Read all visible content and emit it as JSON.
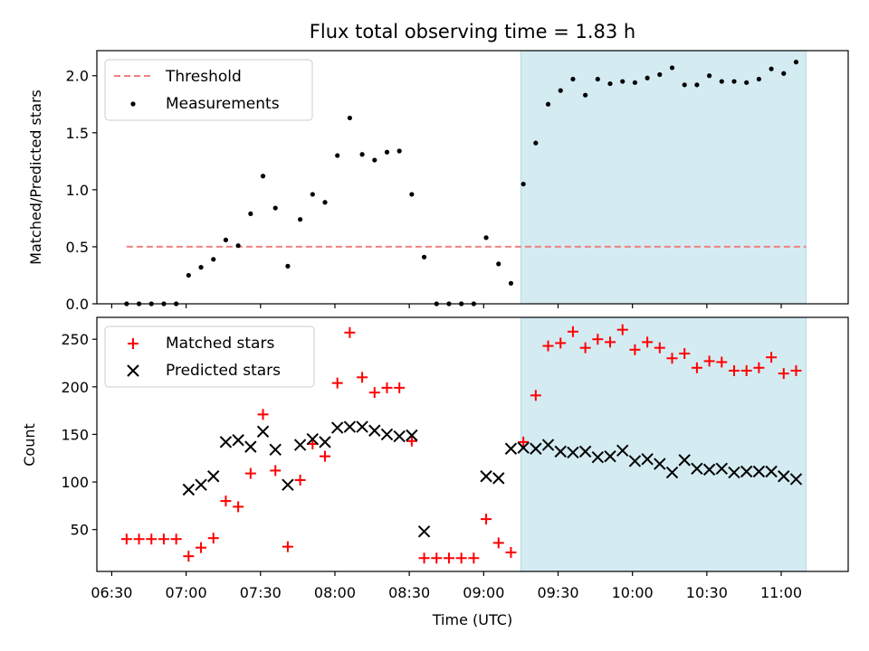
{
  "chart_data": [
    {
      "type": "scatter",
      "title": "Flux total observing time = 1.83 h",
      "xlabel": "",
      "ylabel": "Matched/Predicted stars",
      "xlim": [
        "06:24",
        "11:27"
      ],
      "ylim": [
        0,
        2.22
      ],
      "yticks": [
        "0.0",
        "0.5",
        "1.0",
        "1.5",
        "2.0"
      ],
      "ytick_values": [
        0,
        0.5,
        1.0,
        1.5,
        2.0
      ],
      "highlight_span": {
        "start": "09:15",
        "end": "11:10",
        "color": "#d4ebf2"
      },
      "legend": {
        "placement": "top-left",
        "entries": [
          "Threshold",
          "Measurements"
        ]
      },
      "series": [
        {
          "name": "Threshold",
          "kind": "line",
          "style": "dashed",
          "color": "#f08080",
          "x": [
            "06:36",
            "11:10"
          ],
          "values": [
            0.5,
            0.5
          ]
        },
        {
          "name": "Measurements",
          "kind": "scatter",
          "color": "#000000",
          "x": [
            "06:36",
            "06:41",
            "06:46",
            "06:51",
            "06:56",
            "07:01",
            "07:06",
            "07:11",
            "07:16",
            "07:21",
            "07:26",
            "07:31",
            "07:36",
            "07:41",
            "07:46",
            "07:51",
            "07:56",
            "08:01",
            "08:06",
            "08:11",
            "08:16",
            "08:21",
            "08:26",
            "08:31",
            "08:36",
            "08:41",
            "08:46",
            "08:51",
            "08:56",
            "09:01",
            "09:06",
            "09:11",
            "09:16",
            "09:21",
            "09:26",
            "09:31",
            "09:36",
            "09:41",
            "09:46",
            "09:51",
            "09:56",
            "10:01",
            "10:06",
            "10:11",
            "10:16",
            "10:21",
            "10:26",
            "10:31",
            "10:36",
            "10:41",
            "10:46",
            "10:51",
            "10:56",
            "11:01",
            "11:06"
          ],
          "values": [
            0.0,
            0.0,
            0.0,
            0.0,
            0.0,
            0.25,
            0.32,
            0.39,
            0.56,
            0.51,
            0.79,
            1.12,
            0.84,
            0.33,
            0.74,
            0.96,
            0.89,
            1.3,
            1.63,
            1.31,
            1.26,
            1.33,
            1.34,
            0.96,
            0.41,
            0.0,
            0.0,
            0.0,
            0.0,
            0.58,
            0.35,
            0.18,
            1.05,
            1.41,
            1.75,
            1.87,
            1.97,
            1.83,
            1.97,
            1.93,
            1.95,
            1.94,
            1.98,
            2.01,
            2.07,
            1.92,
            1.92,
            2.0,
            1.95,
            1.95,
            1.94,
            1.97,
            2.06,
            2.02,
            2.12
          ]
        }
      ]
    },
    {
      "type": "scatter",
      "title": "",
      "xlabel": "Time (UTC)",
      "ylabel": "Count",
      "xlim": [
        "06:24",
        "11:27"
      ],
      "ylim": [
        6,
        273
      ],
      "xticks": [
        "06:30",
        "07:00",
        "07:30",
        "08:00",
        "08:30",
        "09:00",
        "09:30",
        "10:00",
        "10:30",
        "11:00"
      ],
      "yticks": [
        "50",
        "100",
        "150",
        "200",
        "250"
      ],
      "ytick_values": [
        50,
        100,
        150,
        200,
        250
      ],
      "highlight_span": {
        "start": "09:15",
        "end": "11:10",
        "color": "#d4ebf2"
      },
      "legend": {
        "placement": "top-left",
        "entries": [
          "Matched stars",
          "Predicted stars"
        ]
      },
      "series": [
        {
          "name": "Matched stars",
          "marker": "+",
          "color": "#ff0000",
          "x": [
            "06:36",
            "06:41",
            "06:46",
            "06:51",
            "06:56",
            "07:01",
            "07:06",
            "07:11",
            "07:16",
            "07:21",
            "07:26",
            "07:31",
            "07:36",
            "07:41",
            "07:46",
            "07:51",
            "07:56",
            "08:01",
            "08:06",
            "08:11",
            "08:16",
            "08:21",
            "08:26",
            "08:31",
            "08:36",
            "08:41",
            "08:46",
            "08:51",
            "08:56",
            "09:01",
            "09:06",
            "09:11",
            "09:16",
            "09:21",
            "09:26",
            "09:31",
            "09:36",
            "09:41",
            "09:46",
            "09:51",
            "09:56",
            "10:01",
            "10:06",
            "10:11",
            "10:16",
            "10:21",
            "10:26",
            "10:31",
            "10:36",
            "10:41",
            "10:46",
            "10:51",
            "10:56",
            "11:01",
            "11:06"
          ],
          "values": [
            40,
            40,
            40,
            40,
            40,
            22,
            31,
            41,
            80,
            74,
            109,
            171,
            112,
            32,
            102,
            140,
            127,
            204,
            257,
            210,
            194,
            199,
            199,
            143,
            20,
            20,
            20,
            20,
            20,
            61,
            36,
            26,
            142,
            191,
            243,
            246,
            258,
            241,
            250,
            247,
            260,
            239,
            247,
            241,
            230,
            235,
            220,
            227,
            226,
            217,
            217,
            220,
            231,
            214,
            217
          ]
        },
        {
          "name": "Predicted stars",
          "marker": "x",
          "color": "#000000",
          "x": [
            "07:01",
            "07:06",
            "07:11",
            "07:16",
            "07:21",
            "07:26",
            "07:31",
            "07:36",
            "07:41",
            "07:46",
            "07:51",
            "07:56",
            "08:01",
            "08:06",
            "08:11",
            "08:16",
            "08:21",
            "08:26",
            "08:31",
            "08:36",
            "09:01",
            "09:06",
            "09:11",
            "09:16",
            "09:21",
            "09:26",
            "09:31",
            "09:36",
            "09:41",
            "09:46",
            "09:51",
            "09:56",
            "10:01",
            "10:06",
            "10:11",
            "10:16",
            "10:21",
            "10:26",
            "10:31",
            "10:36",
            "10:41",
            "10:46",
            "10:51",
            "10:56",
            "11:01",
            "11:06"
          ],
          "values": [
            92,
            97,
            106,
            142,
            144,
            137,
            153,
            134,
            97,
            139,
            145,
            142,
            157,
            158,
            158,
            154,
            150,
            148,
            149,
            48,
            106,
            104,
            135,
            136,
            135,
            139,
            132,
            131,
            132,
            126,
            127,
            133,
            122,
            124,
            119,
            110,
            123,
            114,
            113,
            114,
            110,
            111,
            111,
            111,
            106,
            103
          ]
        }
      ]
    }
  ]
}
